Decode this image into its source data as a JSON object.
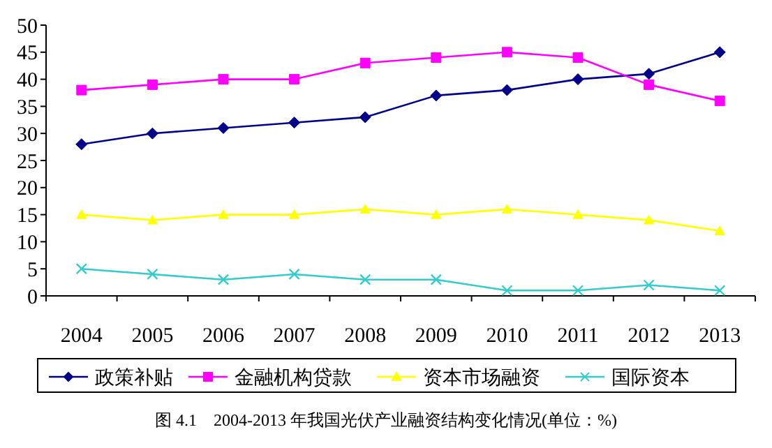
{
  "chart_data": {
    "type": "line",
    "title": "图 4.1　2004-2013 年我国光伏产业融资结构变化情况(单位：%)",
    "categories": [
      "2004",
      "2005",
      "2006",
      "2007",
      "2008",
      "2009",
      "2010",
      "2011",
      "2012",
      "2013"
    ],
    "ylim": [
      0,
      50
    ],
    "yticks": [
      0,
      5,
      10,
      15,
      20,
      25,
      30,
      35,
      40,
      45,
      50
    ],
    "grid": false,
    "legend": "bottom",
    "series": [
      {
        "name": "政策补贴",
        "color": "#00008b",
        "marker": "diamond",
        "values": [
          28,
          30,
          31,
          32,
          33,
          37,
          38,
          40,
          41,
          45
        ]
      },
      {
        "name": "金融机构贷款",
        "color": "#ff00ff",
        "marker": "square",
        "values": [
          38,
          39,
          40,
          40,
          43,
          44,
          45,
          44,
          39,
          36
        ]
      },
      {
        "name": "资本市场融资",
        "color": "#ffff00",
        "marker": "triangle",
        "values": [
          15,
          14,
          15,
          15,
          16,
          15,
          16,
          15,
          14,
          12
        ]
      },
      {
        "name": "国际资本",
        "color": "#33cccc",
        "marker": "cross",
        "values": [
          5,
          4,
          3,
          4,
          3,
          3,
          1,
          1,
          2,
          1
        ]
      }
    ]
  }
}
